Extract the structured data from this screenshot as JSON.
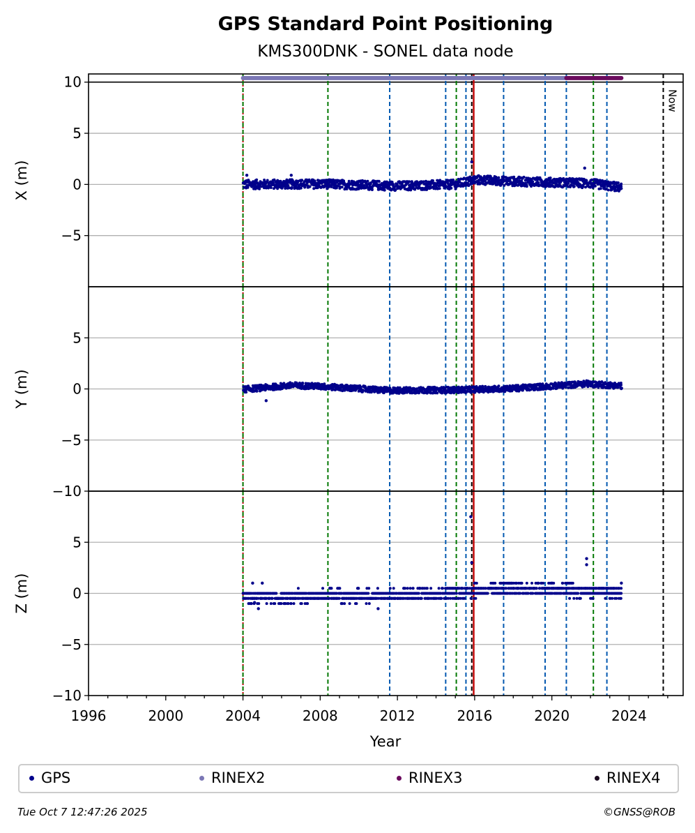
{
  "chart_data": {
    "type": "scatter",
    "title": "GPS Standard Point Positioning",
    "subtitle": "KMS300DNK - SONEL data node",
    "xlabel": "Year",
    "xlim": [
      1996,
      2026.8
    ],
    "x_ticks": [
      "1996",
      "2000",
      "2004",
      "2008",
      "2012",
      "2016",
      "2020",
      "2024"
    ],
    "x_tick_values": [
      1996,
      2000,
      2004,
      2008,
      2012,
      2016,
      2020,
      2024
    ],
    "y_ticks": [
      "−5",
      "0",
      "5",
      "10",
      "−10"
    ],
    "y_tick_values": [
      -5,
      0,
      5,
      10,
      -10
    ],
    "grid": "y-major",
    "panels": [
      {
        "ylabel": "X (m)",
        "ylim": [
          -10,
          10.8
        ],
        "series": [
          {
            "name": "GPS",
            "color": "#00008b",
            "trend": [
              [
                2004.0,
                0.0
              ],
              [
                2008.0,
                0.05
              ],
              [
                2012.0,
                -0.15
              ],
              [
                2015.0,
                0.0
              ],
              [
                2016.0,
                0.45
              ],
              [
                2018.0,
                0.3
              ],
              [
                2022.0,
                0.1
              ],
              [
                2023.6,
                -0.3
              ]
            ],
            "outliers": [
              [
                2015.85,
                2.2
              ],
              [
                2021.7,
                1.6
              ],
              [
                2004.2,
                0.9
              ],
              [
                2006.5,
                0.9
              ]
            ]
          }
        ]
      },
      {
        "ylabel": "Y (m)",
        "ylim": [
          -10,
          10
        ],
        "series": [
          {
            "name": "GPS",
            "color": "#00008b",
            "trend": [
              [
                2004.0,
                -0.05
              ],
              [
                2006.5,
                0.35
              ],
              [
                2008.0,
                0.25
              ],
              [
                2011.5,
                -0.15
              ],
              [
                2015.0,
                -0.1
              ],
              [
                2018.0,
                0.05
              ],
              [
                2021.8,
                0.5
              ],
              [
                2023.6,
                0.3
              ]
            ],
            "outliers": [
              [
                2005.2,
                -1.15
              ],
              [
                2021.8,
                0.8
              ]
            ]
          }
        ]
      },
      {
        "ylabel": "Z (m)",
        "ylim": [
          -10,
          10
        ],
        "series": [
          {
            "name": "GPS",
            "color": "#00008b",
            "trend": [
              [
                2004.0,
                -0.35
              ],
              [
                2008.0,
                -0.25
              ],
              [
                2012.0,
                -0.2
              ],
              [
                2015.5,
                0.15
              ],
              [
                2018.0,
                0.45
              ],
              [
                2022.0,
                0.2
              ],
              [
                2023.6,
                0.1
              ]
            ],
            "outliers": [
              [
                2015.8,
                7.5
              ],
              [
                2015.85,
                3.0
              ],
              [
                2021.8,
                3.4
              ],
              [
                2021.8,
                2.8
              ],
              [
                2004.5,
                1.0
              ],
              [
                2005.0,
                1.0
              ],
              [
                2004.8,
                -1.5
              ],
              [
                2011.0,
                -1.5
              ],
              [
                2016.0,
                1.0
              ],
              [
                2017.5,
                1.0
              ],
              [
                2020.0,
                1.0
              ],
              [
                2023.6,
                1.0
              ],
              [
                2004.6,
                -0.9
              ],
              [
                2008.5,
                0.5
              ]
            ]
          }
        ]
      }
    ],
    "availability": [
      {
        "name": "RINEX2",
        "color": "#7b77b5",
        "y": 10.4,
        "x_range": [
          2004.0,
          2020.75
        ]
      },
      {
        "name": "RINEX3",
        "color": "#6b0b5e",
        "y": 10.4,
        "x_range": [
          2020.75,
          2023.6
        ]
      }
    ],
    "event_lines": [
      {
        "x": 2004.0,
        "color": "#c00000",
        "style": "dotted"
      },
      {
        "x": 2004.0,
        "color": "#007800",
        "style": "dashed"
      },
      {
        "x": 2008.4,
        "color": "#007800",
        "style": "dashed"
      },
      {
        "x": 2011.6,
        "color": "#0058b0",
        "style": "dashed"
      },
      {
        "x": 2014.5,
        "color": "#0058b0",
        "style": "dashed"
      },
      {
        "x": 2015.05,
        "color": "#007800",
        "style": "dashed"
      },
      {
        "x": 2015.55,
        "color": "#0058b0",
        "style": "dashed"
      },
      {
        "x": 2015.85,
        "color": "#000000",
        "style": "dashed"
      },
      {
        "x": 2015.95,
        "color": "#c00000",
        "style": "solid"
      },
      {
        "x": 2017.5,
        "color": "#0058b0",
        "style": "dashed"
      },
      {
        "x": 2019.65,
        "color": "#0058b0",
        "style": "dashed"
      },
      {
        "x": 2020.75,
        "color": "#0058b0",
        "style": "dashed"
      },
      {
        "x": 2022.15,
        "color": "#007800",
        "style": "dashed"
      },
      {
        "x": 2022.85,
        "color": "#0058b0",
        "style": "dashed"
      }
    ],
    "now_line": {
      "x": 2025.77,
      "label": "Now"
    },
    "legend": [
      {
        "name": "GPS",
        "color": "#00008b"
      },
      {
        "name": "RINEX2",
        "color": "#7b77b5"
      },
      {
        "name": "RINEX3",
        "color": "#6b0b5e"
      },
      {
        "name": "RINEX4",
        "color": "#1a0a1f"
      }
    ]
  },
  "footer": {
    "timestamp": "Tue Oct  7 12:47:26 2025",
    "credit": "©GNSS@ROB"
  }
}
